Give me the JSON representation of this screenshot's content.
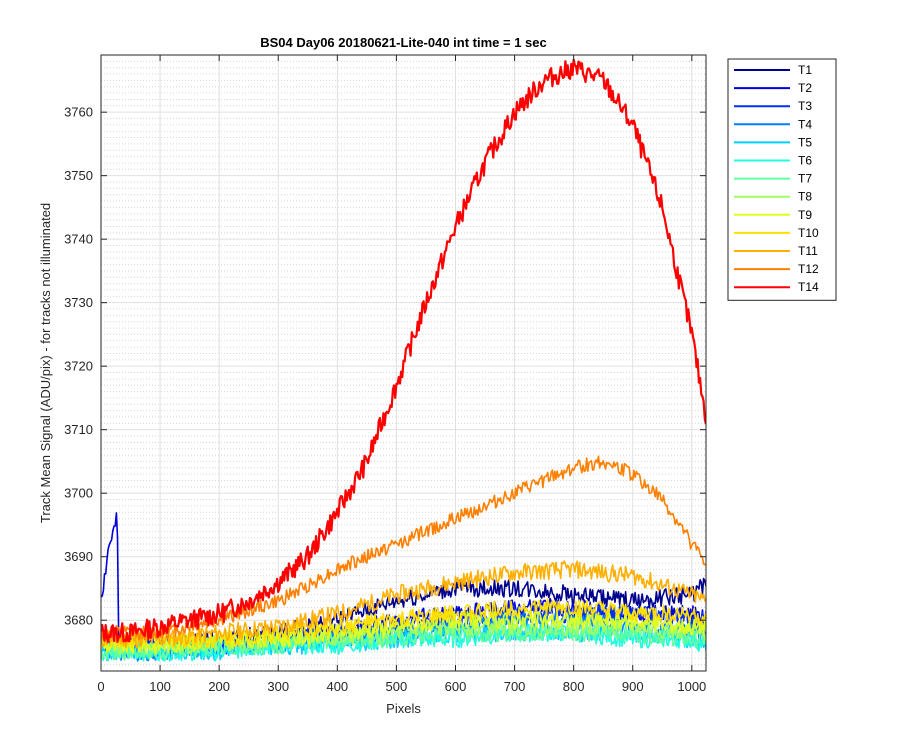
{
  "chart_data": {
    "type": "line",
    "title": "BS04 Day06 20180621-Lite-040 int time = 1 sec",
    "xlabel": "Pixels",
    "ylabel": "Track Mean Signal (ADU/pix) - for tracks not illuminated",
    "xlim": [
      0,
      1024
    ],
    "ylim": [
      3672,
      3769
    ],
    "xticks": [
      0,
      100,
      200,
      300,
      400,
      500,
      600,
      700,
      800,
      900,
      1000
    ],
    "yticks": [
      3680,
      3690,
      3700,
      3710,
      3720,
      3730,
      3740,
      3750,
      3760
    ],
    "grid": true,
    "minor_grid_y": true,
    "legend_position": "outside-right",
    "series": [
      {
        "name": "T1",
        "color": "#00008F",
        "x": [
          0,
          100,
          200,
          300,
          400,
          500,
          600,
          700,
          800,
          900,
          1000,
          1024
        ],
        "y": [
          3676,
          3676,
          3677,
          3678,
          3680,
          3683,
          3685,
          3685,
          3684,
          3683,
          3684,
          3686
        ]
      },
      {
        "name": "T2",
        "color": "#0000DF",
        "x": [
          0,
          5,
          12,
          18,
          22,
          26,
          29,
          30,
          40,
          100,
          200,
          300,
          400,
          500,
          600,
          700,
          800,
          900,
          1000,
          1024
        ],
        "y": [
          3684,
          3686,
          3691,
          3693,
          3694,
          3695.5,
          3691,
          3677,
          3676,
          3676,
          3676,
          3677,
          3678,
          3680,
          3681,
          3682,
          3682,
          3681,
          3681,
          3680
        ]
      },
      {
        "name": "T3",
        "color": "#0030FF",
        "x": [
          0,
          100,
          200,
          300,
          400,
          500,
          600,
          700,
          800,
          900,
          1000,
          1024
        ],
        "y": [
          3676,
          3676,
          3676,
          3677,
          3678,
          3679,
          3680,
          3681,
          3681,
          3681,
          3680,
          3680
        ]
      },
      {
        "name": "T4",
        "color": "#0080FF",
        "x": [
          0,
          100,
          200,
          300,
          400,
          500,
          600,
          700,
          800,
          900,
          1000,
          1024
        ],
        "y": [
          3675,
          3675,
          3676,
          3676,
          3677,
          3678,
          3679,
          3680,
          3680,
          3679,
          3678,
          3677
        ]
      },
      {
        "name": "T5",
        "color": "#00CFFF",
        "x": [
          0,
          100,
          200,
          300,
          400,
          500,
          600,
          700,
          800,
          900,
          1000,
          1024
        ],
        "y": [
          3675,
          3675,
          3675,
          3676,
          3676,
          3677,
          3678,
          3678,
          3678,
          3678,
          3677,
          3676
        ]
      },
      {
        "name": "T6",
        "color": "#20FFDF",
        "x": [
          0,
          100,
          200,
          300,
          400,
          500,
          600,
          700,
          800,
          900,
          1000,
          1024
        ],
        "y": [
          3675,
          3675,
          3675,
          3676,
          3676,
          3677,
          3677,
          3678,
          3678,
          3677,
          3677,
          3676
        ]
      },
      {
        "name": "T7",
        "color": "#60FF9F",
        "x": [
          0,
          100,
          200,
          300,
          400,
          500,
          600,
          700,
          800,
          900,
          1000,
          1024
        ],
        "y": [
          3675,
          3675,
          3676,
          3676,
          3677,
          3677,
          3678,
          3678,
          3678,
          3678,
          3677,
          3677
        ]
      },
      {
        "name": "T8",
        "color": "#9FFF60",
        "x": [
          0,
          100,
          200,
          300,
          400,
          500,
          600,
          700,
          800,
          900,
          1000,
          1024
        ],
        "y": [
          3676,
          3676,
          3676,
          3677,
          3677,
          3678,
          3679,
          3679,
          3679,
          3679,
          3678,
          3678
        ]
      },
      {
        "name": "T9",
        "color": "#DFFF20",
        "x": [
          0,
          100,
          200,
          300,
          400,
          500,
          600,
          700,
          800,
          900,
          1000,
          1024
        ],
        "y": [
          3676,
          3676,
          3677,
          3677,
          3678,
          3679,
          3680,
          3680,
          3680,
          3680,
          3679,
          3679
        ]
      },
      {
        "name": "T10",
        "color": "#FFDF00",
        "x": [
          0,
          100,
          200,
          300,
          400,
          500,
          600,
          700,
          800,
          900,
          1000,
          1024
        ],
        "y": [
          3677,
          3677,
          3677,
          3678,
          3679,
          3680,
          3681,
          3682,
          3682,
          3681,
          3681,
          3680
        ]
      },
      {
        "name": "T11",
        "color": "#FFAF00",
        "x": [
          0,
          100,
          200,
          300,
          400,
          500,
          600,
          700,
          800,
          900,
          1000,
          1024
        ],
        "y": [
          3677,
          3677,
          3678,
          3679,
          3681,
          3684,
          3686,
          3687.5,
          3688,
          3687,
          3684,
          3683
        ]
      },
      {
        "name": "T12",
        "color": "#FF7F00",
        "x": [
          0,
          100,
          200,
          300,
          400,
          500,
          600,
          700,
          800,
          850,
          900,
          950,
          1000,
          1024
        ],
        "y": [
          3678,
          3678,
          3680,
          3683,
          3688,
          3692,
          3696,
          3700,
          3704,
          3705,
          3703,
          3699,
          3692,
          3689
        ]
      },
      {
        "name": "T14",
        "color": "#FF0000",
        "x": [
          0,
          50,
          100,
          150,
          200,
          250,
          300,
          350,
          400,
          450,
          500,
          550,
          600,
          650,
          700,
          750,
          800,
          850,
          900,
          950,
          1000,
          1024
        ],
        "y": [
          3678,
          3678,
          3679,
          3680,
          3681,
          3683,
          3686,
          3690,
          3697,
          3705,
          3717,
          3730,
          3742,
          3752,
          3760,
          3765,
          3767,
          3765,
          3758,
          3745,
          3725,
          3712
        ]
      }
    ]
  }
}
